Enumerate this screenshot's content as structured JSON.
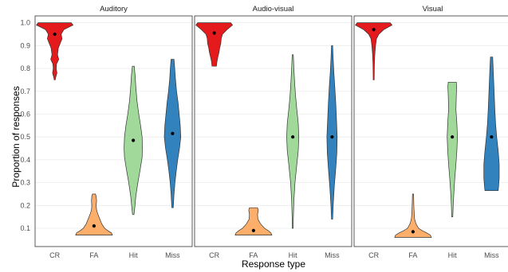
{
  "chart_data": {
    "type": "violin",
    "xlabel": "Response type",
    "ylabel": "Proportion of responses",
    "ylim": [
      0.02,
      1.03
    ],
    "y_ticks": [
      "0.1",
      "0.2",
      "0.3",
      "0.4",
      "0.5",
      "0.6",
      "0.7",
      "0.8",
      "0.9",
      "1.0"
    ],
    "categories": [
      "CR",
      "FA",
      "Hit",
      "Miss"
    ],
    "colors": {
      "CR": "#e41a1c",
      "FA": "#fdae6b",
      "Hit": "#a1d99b",
      "Miss": "#3182bd"
    },
    "grid": true,
    "legend": "none",
    "panels": [
      {
        "title": "Auditory",
        "violins": [
          {
            "category": "CR",
            "mean": 0.95,
            "min": 0.75,
            "max": 1.0,
            "profile": [
              [
                1.0,
                0.9
              ],
              [
                0.99,
                1.0
              ],
              [
                0.97,
                0.5
              ],
              [
                0.95,
                0.35
              ],
              [
                0.93,
                0.4
              ],
              [
                0.91,
                0.3
              ],
              [
                0.89,
                0.2
              ],
              [
                0.86,
                0.15
              ],
              [
                0.84,
                0.22
              ],
              [
                0.82,
                0.1
              ],
              [
                0.8,
                0.08
              ],
              [
                0.78,
                0.12
              ],
              [
                0.76,
                0.05
              ],
              [
                0.75,
                0.02
              ]
            ]
          },
          {
            "category": "FA",
            "mean": 0.11,
            "min": 0.07,
            "max": 0.25,
            "profile": [
              [
                0.25,
                0.08
              ],
              [
                0.24,
                0.12
              ],
              [
                0.22,
                0.14
              ],
              [
                0.2,
                0.12
              ],
              [
                0.18,
                0.14
              ],
              [
                0.16,
                0.22
              ],
              [
                0.14,
                0.32
              ],
              [
                0.12,
                0.42
              ],
              [
                0.1,
                0.58
              ],
              [
                0.09,
                0.75
              ],
              [
                0.08,
                0.95
              ],
              [
                0.07,
                1.0
              ]
            ]
          },
          {
            "category": "Hit",
            "mean": 0.485,
            "min": 0.16,
            "max": 0.81,
            "profile": [
              [
                0.81,
                0.05
              ],
              [
                0.77,
                0.1
              ],
              [
                0.72,
                0.14
              ],
              [
                0.66,
                0.2
              ],
              [
                0.6,
                0.3
              ],
              [
                0.55,
                0.4
              ],
              [
                0.5,
                0.48
              ],
              [
                0.45,
                0.5
              ],
              [
                0.41,
                0.48
              ],
              [
                0.36,
                0.38
              ],
              [
                0.3,
                0.25
              ],
              [
                0.24,
                0.14
              ],
              [
                0.19,
                0.08
              ],
              [
                0.16,
                0.04
              ]
            ]
          },
          {
            "category": "Miss",
            "mean": 0.515,
            "min": 0.19,
            "max": 0.84,
            "profile": [
              [
                0.84,
                0.08
              ],
              [
                0.8,
                0.12
              ],
              [
                0.75,
                0.16
              ],
              [
                0.7,
                0.22
              ],
              [
                0.65,
                0.3
              ],
              [
                0.6,
                0.36
              ],
              [
                0.55,
                0.42
              ],
              [
                0.5,
                0.45
              ],
              [
                0.45,
                0.38
              ],
              [
                0.4,
                0.28
              ],
              [
                0.35,
                0.2
              ],
              [
                0.3,
                0.13
              ],
              [
                0.25,
                0.08
              ],
              [
                0.19,
                0.04
              ]
            ]
          }
        ]
      },
      {
        "title": "Audio-visual",
        "violins": [
          {
            "category": "CR",
            "mean": 0.955,
            "min": 0.81,
            "max": 1.0,
            "profile": [
              [
                1.0,
                0.9
              ],
              [
                0.99,
                1.0
              ],
              [
                0.97,
                0.7
              ],
              [
                0.95,
                0.45
              ],
              [
                0.93,
                0.38
              ],
              [
                0.91,
                0.36
              ],
              [
                0.89,
                0.3
              ],
              [
                0.87,
                0.26
              ],
              [
                0.85,
                0.2
              ],
              [
                0.83,
                0.15
              ],
              [
                0.81,
                0.12
              ]
            ]
          },
          {
            "category": "FA",
            "mean": 0.09,
            "min": 0.07,
            "max": 0.19,
            "profile": [
              [
                0.19,
                0.22
              ],
              [
                0.18,
                0.26
              ],
              [
                0.16,
                0.22
              ],
              [
                0.14,
                0.24
              ],
              [
                0.12,
                0.38
              ],
              [
                0.1,
                0.6
              ],
              [
                0.09,
                0.8
              ],
              [
                0.08,
                0.95
              ],
              [
                0.07,
                1.0
              ]
            ]
          },
          {
            "category": "Hit",
            "mean": 0.5,
            "min": 0.1,
            "max": 0.86,
            "profile": [
              [
                0.86,
                0.03
              ],
              [
                0.8,
                0.06
              ],
              [
                0.74,
                0.1
              ],
              [
                0.68,
                0.15
              ],
              [
                0.62,
                0.22
              ],
              [
                0.56,
                0.3
              ],
              [
                0.5,
                0.33
              ],
              [
                0.44,
                0.3
              ],
              [
                0.38,
                0.22
              ],
              [
                0.3,
                0.12
              ],
              [
                0.22,
                0.06
              ],
              [
                0.14,
                0.03
              ],
              [
                0.1,
                0.02
              ]
            ]
          },
          {
            "category": "Miss",
            "mean": 0.5,
            "min": 0.14,
            "max": 0.9,
            "profile": [
              [
                0.9,
                0.03
              ],
              [
                0.84,
                0.06
              ],
              [
                0.78,
                0.1
              ],
              [
                0.72,
                0.15
              ],
              [
                0.65,
                0.2
              ],
              [
                0.58,
                0.24
              ],
              [
                0.5,
                0.28
              ],
              [
                0.43,
                0.26
              ],
              [
                0.36,
                0.2
              ],
              [
                0.28,
                0.12
              ],
              [
                0.2,
                0.06
              ],
              [
                0.14,
                0.03
              ]
            ]
          }
        ]
      },
      {
        "title": "Visual",
        "violins": [
          {
            "category": "CR",
            "mean": 0.97,
            "min": 0.75,
            "max": 1.0,
            "profile": [
              [
                1.0,
                0.9
              ],
              [
                0.99,
                1.0
              ],
              [
                0.97,
                0.55
              ],
              [
                0.95,
                0.28
              ],
              [
                0.93,
                0.15
              ],
              [
                0.9,
                0.1
              ],
              [
                0.86,
                0.06
              ],
              [
                0.82,
                0.04
              ],
              [
                0.78,
                0.03
              ],
              [
                0.75,
                0.02
              ]
            ]
          },
          {
            "category": "FA",
            "mean": 0.085,
            "min": 0.06,
            "max": 0.25,
            "profile": [
              [
                0.25,
                0.03
              ],
              [
                0.22,
                0.04
              ],
              [
                0.19,
                0.05
              ],
              [
                0.16,
                0.07
              ],
              [
                0.14,
                0.09
              ],
              [
                0.12,
                0.16
              ],
              [
                0.1,
                0.3
              ],
              [
                0.09,
                0.5
              ],
              [
                0.08,
                0.75
              ],
              [
                0.07,
                0.95
              ],
              [
                0.06,
                1.0
              ]
            ]
          },
          {
            "category": "Hit",
            "mean": 0.5,
            "min": 0.15,
            "max": 0.74,
            "profile": [
              [
                0.74,
                0.22
              ],
              [
                0.72,
                0.24
              ],
              [
                0.68,
                0.22
              ],
              [
                0.62,
                0.2
              ],
              [
                0.56,
                0.25
              ],
              [
                0.5,
                0.28
              ],
              [
                0.44,
                0.25
              ],
              [
                0.38,
                0.2
              ],
              [
                0.32,
                0.14
              ],
              [
                0.26,
                0.09
              ],
              [
                0.2,
                0.05
              ],
              [
                0.15,
                0.03
              ]
            ]
          },
          {
            "category": "Miss",
            "mean": 0.5,
            "min": 0.265,
            "max": 0.85,
            "profile": [
              [
                0.85,
                0.06
              ],
              [
                0.8,
                0.09
              ],
              [
                0.74,
                0.12
              ],
              [
                0.68,
                0.15
              ],
              [
                0.62,
                0.18
              ],
              [
                0.56,
                0.22
              ],
              [
                0.5,
                0.28
              ],
              [
                0.44,
                0.36
              ],
              [
                0.38,
                0.42
              ],
              [
                0.32,
                0.42
              ],
              [
                0.28,
                0.38
              ],
              [
                0.265,
                0.36
              ]
            ]
          }
        ]
      }
    ]
  }
}
